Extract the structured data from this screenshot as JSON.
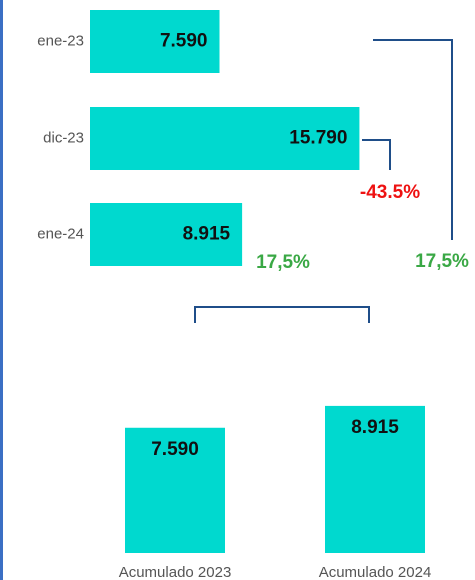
{
  "chart_data": [
    {
      "type": "hbar",
      "categories": [
        "ene-23",
        "dic-23",
        "ene-24"
      ],
      "values": [
        7590,
        15790,
        8915
      ],
      "value_labels": [
        "7.590",
        "15.790",
        "8.915"
      ],
      "color": "#00d9cf",
      "xlim": [
        0,
        16000
      ],
      "annotations": [
        {
          "text": "-43.5%",
          "color": "#ee1111"
        },
        {
          "text": "17,5%",
          "color": "#3aa845"
        }
      ]
    },
    {
      "type": "bar",
      "categories": [
        "Acumulado 2023",
        "Acumulado 2024"
      ],
      "values": [
        7590,
        8915
      ],
      "value_labels": [
        "7.590",
        "8.915"
      ],
      "color": "#00d9cf",
      "ylim": [
        0,
        10000
      ],
      "annotations": [
        {
          "text": "17,5%",
          "color": "#3aa845"
        }
      ]
    }
  ]
}
